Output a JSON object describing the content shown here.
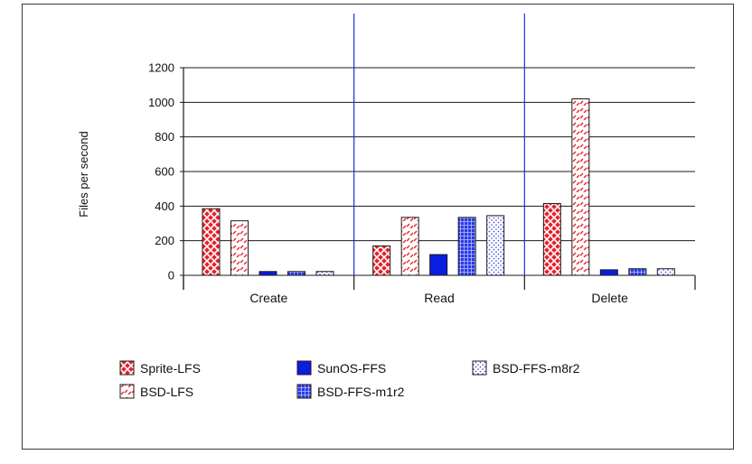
{
  "chart_data": {
    "type": "bar",
    "ylabel": "Files per second",
    "xlabel": "",
    "title": "",
    "ylim": [
      0,
      1200
    ],
    "yticks": [
      0,
      200,
      400,
      600,
      800,
      1000,
      1200
    ],
    "categories": [
      "Create",
      "Read",
      "Delete"
    ],
    "series": [
      {
        "name": "Sprite-LFS",
        "values": [
          385,
          170,
          415
        ],
        "color": "#e8202a",
        "pattern": "xhatch"
      },
      {
        "name": "BSD-LFS",
        "values": [
          315,
          335,
          1020
        ],
        "color": "#e8202a",
        "pattern": "dash"
      },
      {
        "name": "SunOS-FFS",
        "values": [
          22,
          120,
          32
        ],
        "color": "#0a1ee0",
        "pattern": "solid"
      },
      {
        "name": "BSD-FFS-m1r2",
        "values": [
          22,
          335,
          38
        ],
        "color": "#2a3ae8",
        "pattern": "grid"
      },
      {
        "name": "BSD-FFS-m8r2",
        "values": [
          22,
          345,
          38
        ],
        "color": "#2a3ae8",
        "pattern": "dots"
      }
    ],
    "grid": "horizontal",
    "legend_position": "bottom",
    "legend_order": [
      "Sprite-LFS",
      "SunOS-FFS",
      "BSD-FFS-m8r2",
      "BSD-LFS",
      "BSD-FFS-m1r2"
    ]
  }
}
